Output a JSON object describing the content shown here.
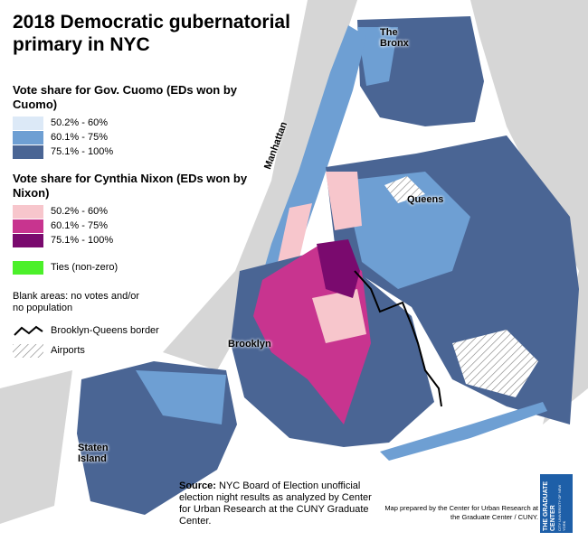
{
  "title": "2018 Democratic gubernatorial primary in NYC",
  "legend": {
    "cuomo": {
      "heading": "Vote share for Gov. Cuomo (EDs won by Cuomo)",
      "items": [
        {
          "label": "50.2% - 60%",
          "color": "#dce9f7"
        },
        {
          "label": "60.1% - 75%",
          "color": "#6e9fd3"
        },
        {
          "label": "75.1% - 100%",
          "color": "#4a6594"
        }
      ]
    },
    "nixon": {
      "heading": "Vote share for Cynthia Nixon (EDs won by Nixon)",
      "items": [
        {
          "label": "50.2% - 60%",
          "color": "#f7c6cc"
        },
        {
          "label": "60.1% - 75%",
          "color": "#c8348f"
        },
        {
          "label": "75.1% - 100%",
          "color": "#7a0a6e"
        }
      ]
    },
    "ties": {
      "label": "Ties (non-zero)",
      "color": "#4cf02a"
    },
    "blank": "Blank areas: no votes and/or no population",
    "border": "Brooklyn-Queens border",
    "airports": "Airports"
  },
  "boroughs": {
    "bronx": "The Bronx",
    "manhattan": "Manhattan",
    "queens": "Queens",
    "brooklyn": "Brooklyn",
    "staten_island": "Staten Island"
  },
  "source": {
    "label": "Source:",
    "text": "NYC Board of Election unofficial election night results as analyzed by Center for Urban Research at the CUNY Graduate Center."
  },
  "credit": "Map prepared by the Center for Urban Research at the Graduate Center / CUNY.",
  "logo": {
    "name": "THE GRADUATE CENTER",
    "sub": "CITY UNIVERSITY OF NEW YORK"
  }
}
